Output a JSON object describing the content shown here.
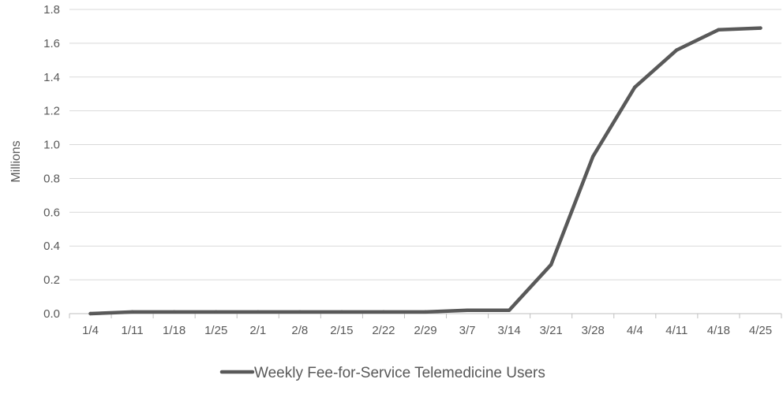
{
  "chart_data": {
    "type": "line",
    "title": "",
    "xlabel": "",
    "ylabel": "Millions",
    "categories": [
      "1/4",
      "1/11",
      "1/18",
      "1/25",
      "2/1",
      "2/8",
      "2/15",
      "2/22",
      "2/29",
      "3/7",
      "3/14",
      "3/21",
      "3/28",
      "4/4",
      "4/11",
      "4/18",
      "4/25"
    ],
    "series": [
      {
        "name": "Weekly Fee-for-Service Telemedicine Users",
        "values": [
          0.0,
          0.01,
          0.01,
          0.01,
          0.01,
          0.01,
          0.01,
          0.01,
          0.01,
          0.02,
          0.02,
          0.29,
          0.93,
          1.34,
          1.56,
          1.68,
          1.69
        ],
        "color": "#595959"
      }
    ],
    "ylim": [
      0,
      1.8
    ],
    "yticks": [
      "0.0",
      "0.2",
      "0.4",
      "0.6",
      "0.8",
      "1.0",
      "1.2",
      "1.4",
      "1.6",
      "1.8"
    ],
    "grid": true,
    "legend_position": "bottom"
  }
}
